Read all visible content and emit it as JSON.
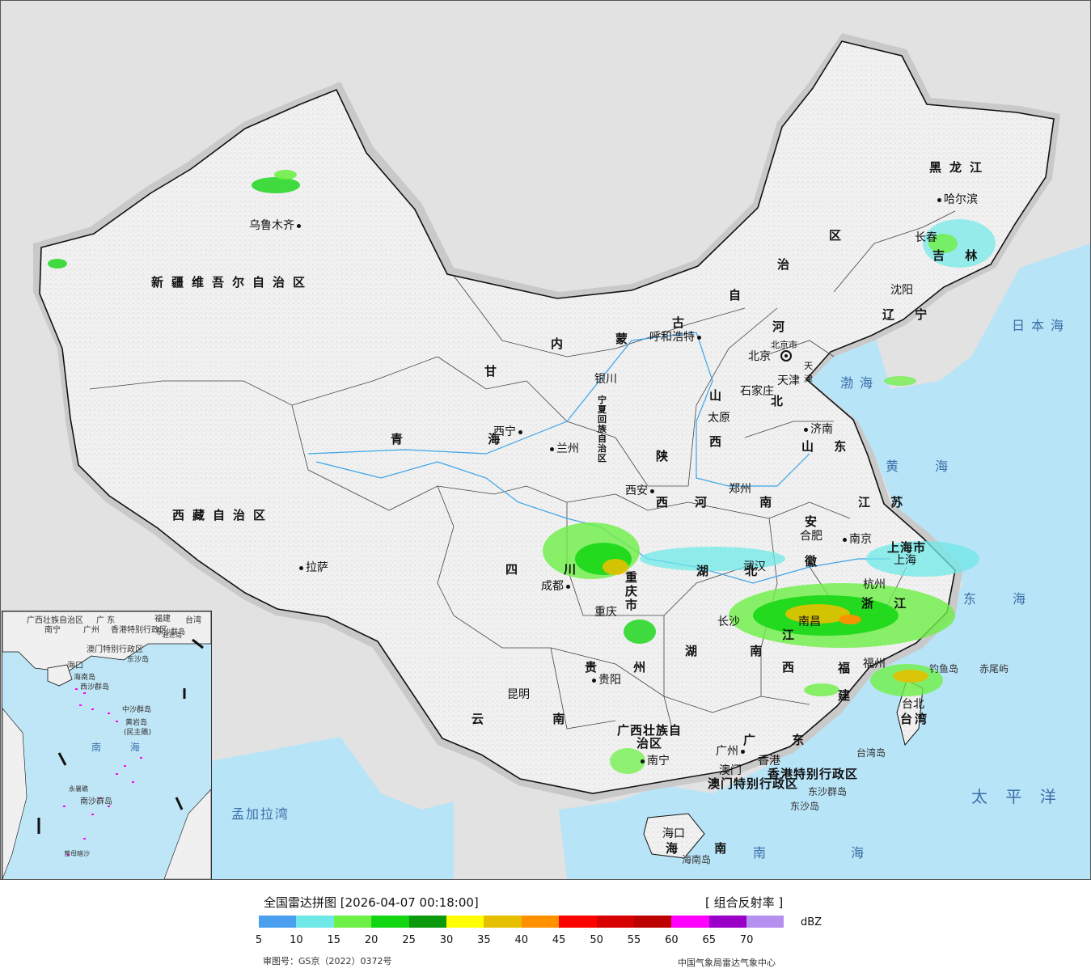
{
  "map": {
    "provinces": [
      {
        "id": "xinjiang",
        "name": "新疆维吾尔自治区"
      },
      {
        "id": "xizang",
        "name": "西藏自治区"
      },
      {
        "id": "qinghai",
        "name": "青 海"
      },
      {
        "id": "gansu",
        "name": "甘"
      },
      {
        "id": "neimenggu-1",
        "name": "内"
      },
      {
        "id": "neimenggu-2",
        "name": "蒙"
      },
      {
        "id": "neimenggu-3",
        "name": "古"
      },
      {
        "id": "neimenggu-4",
        "name": "自"
      },
      {
        "id": "neimenggu-5",
        "name": "治"
      },
      {
        "id": "neimenggu-6",
        "name": "区"
      },
      {
        "id": "heilongjiang",
        "name": "黑龙江"
      },
      {
        "id": "jilin",
        "name": "吉 林"
      },
      {
        "id": "liaoning",
        "name": "辽 宁"
      },
      {
        "id": "hebei-1",
        "name": "河"
      },
      {
        "id": "hebei-2",
        "name": "北"
      },
      {
        "id": "shanxi-1",
        "name": "山"
      },
      {
        "id": "shanxi-2",
        "name": "西"
      },
      {
        "id": "shandong",
        "name": "山 东"
      },
      {
        "id": "shaanxi-1",
        "name": "陕"
      },
      {
        "id": "shaanxi-2",
        "name": "西"
      },
      {
        "id": "henan",
        "name": "河 南"
      },
      {
        "id": "sichuan",
        "name": "四"
      },
      {
        "id": "sichuan-2",
        "name": "川"
      },
      {
        "id": "hubei",
        "name": "湖 北"
      },
      {
        "id": "anhui-1",
        "name": "安"
      },
      {
        "id": "anhui-2",
        "name": "徽"
      },
      {
        "id": "jiangsu",
        "name": "江 苏"
      },
      {
        "id": "zhejiang",
        "name": "浙 江"
      },
      {
        "id": "jiangxi-1",
        "name": "江"
      },
      {
        "id": "jiangxi-2",
        "name": "西"
      },
      {
        "id": "hunan",
        "name": "湖 南"
      },
      {
        "id": "guizhou",
        "name": "贵 州"
      },
      {
        "id": "yunnan",
        "name": "云 南"
      },
      {
        "id": "fujian-1",
        "name": "福"
      },
      {
        "id": "fujian-2",
        "name": "建"
      },
      {
        "id": "guangdong",
        "name": "广 东"
      },
      {
        "id": "guangxi",
        "name": "广西壮族自治区"
      },
      {
        "id": "hainan",
        "name": "海 南"
      },
      {
        "id": "taiwan",
        "name": "台湾"
      },
      {
        "id": "ningxia",
        "name": "宁夏回族自治区"
      },
      {
        "id": "chongqing",
        "name": "重庆市"
      },
      {
        "id": "beijing",
        "name": "北京市"
      },
      {
        "id": "tianjin",
        "name": "天津"
      },
      {
        "id": "shanghai",
        "name": "上海市"
      },
      {
        "id": "hk",
        "name": "香港特别行政区"
      },
      {
        "id": "macau",
        "name": "澳门特别行政区"
      }
    ],
    "cities": [
      {
        "id": "urumqi",
        "name": "乌鲁木齐"
      },
      {
        "id": "lhasa",
        "name": "拉萨"
      },
      {
        "id": "xining",
        "name": "西宁"
      },
      {
        "id": "lanzhou",
        "name": "兰州"
      },
      {
        "id": "yinchuan",
        "name": "银川"
      },
      {
        "id": "hohhot",
        "name": "呼和浩特"
      },
      {
        "id": "harbin",
        "name": "哈尔滨"
      },
      {
        "id": "changchun",
        "name": "长春"
      },
      {
        "id": "shenyang",
        "name": "沈阳"
      },
      {
        "id": "beijing-city",
        "name": "北京"
      },
      {
        "id": "tianjin-city",
        "name": "天津"
      },
      {
        "id": "shijiazhuang",
        "name": "石家庄"
      },
      {
        "id": "taiyuan",
        "name": "太原"
      },
      {
        "id": "jinan",
        "name": "济南"
      },
      {
        "id": "xian",
        "name": "西安"
      },
      {
        "id": "zhengzhou",
        "name": "郑州"
      },
      {
        "id": "chengdu",
        "name": "成都"
      },
      {
        "id": "chongqing-city",
        "name": "重庆"
      },
      {
        "id": "wuhan",
        "name": "武汉"
      },
      {
        "id": "hefei",
        "name": "合肥"
      },
      {
        "id": "nanjing",
        "name": "南京"
      },
      {
        "id": "shanghai-city",
        "name": "上海"
      },
      {
        "id": "hangzhou",
        "name": "杭州"
      },
      {
        "id": "nanchang",
        "name": "南昌"
      },
      {
        "id": "changsha",
        "name": "长沙"
      },
      {
        "id": "guiyang",
        "name": "贵阳"
      },
      {
        "id": "kunming",
        "name": "昆明"
      },
      {
        "id": "fuzhou",
        "name": "福州"
      },
      {
        "id": "taipei",
        "name": "台北"
      },
      {
        "id": "guangzhou",
        "name": "广州"
      },
      {
        "id": "hongkong",
        "name": "香港"
      },
      {
        "id": "macao",
        "name": "澳门"
      },
      {
        "id": "nanning",
        "name": "南宁"
      },
      {
        "id": "haikou",
        "name": "海口"
      }
    ],
    "seas": [
      {
        "id": "japan-sea",
        "name": "日本海"
      },
      {
        "id": "bohai",
        "name": "渤海"
      },
      {
        "id": "yellow-sea",
        "name": "黄 海"
      },
      {
        "id": "east-sea",
        "name": "东 海"
      },
      {
        "id": "pacific",
        "name": "太 平 洋"
      },
      {
        "id": "south-sea",
        "name": "南 海"
      },
      {
        "id": "bengal",
        "name": "孟加拉湾"
      }
    ],
    "islands": [
      {
        "id": "diaoyu",
        "name": "钓鱼岛"
      },
      {
        "id": "chiwei",
        "name": "赤尾屿"
      },
      {
        "id": "taiwan-island",
        "name": "台湾岛"
      },
      {
        "id": "dongsha-qundao",
        "name": "东沙群岛"
      },
      {
        "id": "dongsha",
        "name": "东沙岛"
      },
      {
        "id": "hainan-island",
        "name": "海南岛"
      }
    ],
    "inset": {
      "labels": {
        "guangxi": "广西壮族自治区",
        "nanning": "南宁",
        "guangdong": "广 东",
        "guangzhou": "广州",
        "fujian": "福建",
        "taiwan": "台湾",
        "hk": "香港特别行政区",
        "macau": "澳门特别行政区",
        "dongsha": "东沙群岛",
        "dongsha-island": "东沙岛",
        "haikou": "海口",
        "hainan": "海南岛",
        "xisha": "西沙群岛",
        "zhongsha": "中沙群岛",
        "huangyan": "黄岩岛",
        "huangyan-sub": "(民主礁)",
        "south-sea": "南 海",
        "nansha": "南沙群岛",
        "yongshu": "永暑礁",
        "zengmu": "曾母暗沙",
        "zhaoshu": "赵述岛"
      }
    }
  },
  "legend": {
    "title": "全国雷达拼图 [2026-04-07 00:18:00]",
    "product": "[ 组合反射率 ]",
    "unit": "dBZ",
    "ticks": [
      "5",
      "10",
      "15",
      "20",
      "25",
      "30",
      "35",
      "40",
      "45",
      "50",
      "55",
      "60",
      "65",
      "70"
    ],
    "colors": [
      "#4aa0ef",
      "#6fe8e8",
      "#6ef046",
      "#13d613",
      "#0c9a0c",
      "#ffff00",
      "#e6c000",
      "#ff9000",
      "#ff0000",
      "#d60000",
      "#bd0000",
      "#ff00ff",
      "#9a00c8",
      "#b590f0"
    ],
    "approval": "审图号：GS京（2022）0372号",
    "credit": "中国气象局雷达气象中心"
  }
}
